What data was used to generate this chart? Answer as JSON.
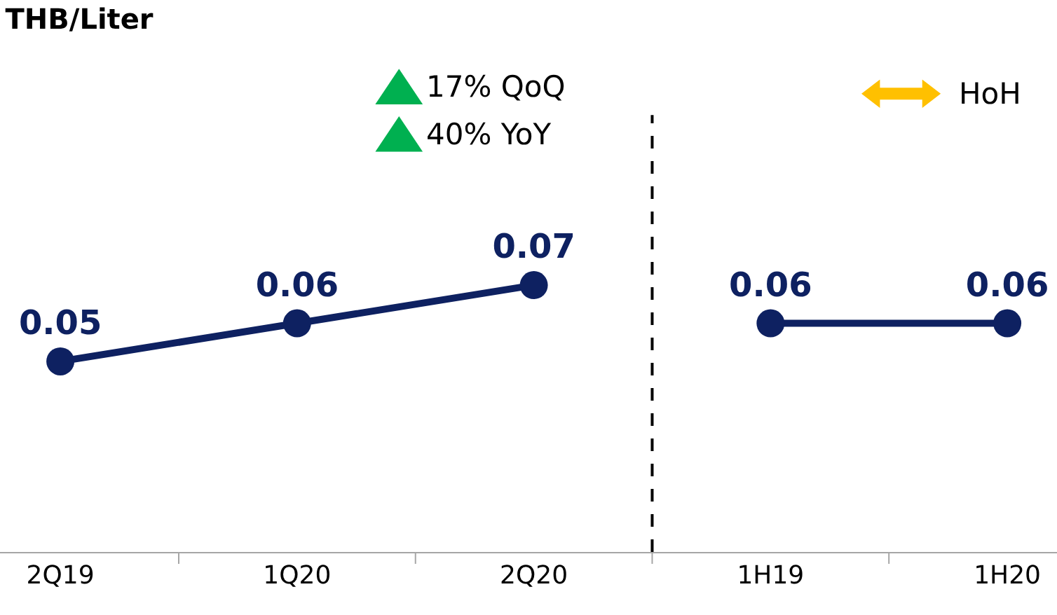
{
  "chart_data": {
    "type": "line",
    "title": "THB/Liter",
    "categories": [
      "2Q19",
      "1Q20",
      "2Q20",
      "1H19",
      "1H20"
    ],
    "series": [
      {
        "color": "#0e2161",
        "values": [
          0.05,
          0.06,
          0.07,
          null,
          null
        ]
      },
      {
        "color": "#0e2161",
        "values": [
          null,
          null,
          null,
          0.06,
          0.06
        ]
      }
    ],
    "tick_labels": "x",
    "data_labels": true,
    "marker": "circle",
    "line_style": "solid",
    "annotations": [
      "17% QoQ",
      "40% YoY",
      "HoH"
    ]
  }
}
